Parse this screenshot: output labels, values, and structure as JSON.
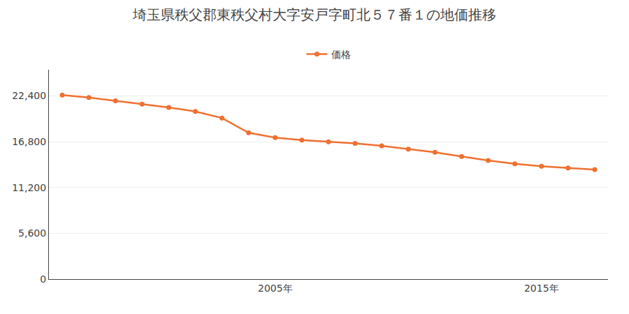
{
  "chart_data": {
    "type": "line",
    "title": "埼玉県秩父郡東秩父村大字安戸字町北５７番１の地価推移",
    "x": [
      1997,
      1998,
      1999,
      2000,
      2001,
      2002,
      2003,
      2004,
      2005,
      2006,
      2007,
      2008,
      2009,
      2010,
      2011,
      2012,
      2013,
      2014,
      2015,
      2016,
      2017
    ],
    "series": [
      {
        "name": "価格",
        "color": "#f07030",
        "values": [
          22500,
          22200,
          21800,
          21400,
          21000,
          20500,
          19700,
          17900,
          17300,
          17000,
          16800,
          16600,
          16300,
          15900,
          15500,
          15000,
          14500,
          14100,
          13800,
          13600,
          13400
        ]
      }
    ],
    "xlim": [
      1996.5,
      2017.5
    ],
    "xticks": [
      {
        "value": 2005,
        "label": "2005年"
      },
      {
        "value": 2015,
        "label": "2015年"
      }
    ],
    "ylim": [
      0,
      25600
    ],
    "yticks": [
      0,
      {
        "value": 5600,
        "label": "5,600"
      },
      {
        "value": 11200,
        "label": "11,200"
      },
      {
        "value": 16800,
        "label": "16,800"
      },
      {
        "value": 22400,
        "label": "22,400"
      }
    ],
    "grid": "y",
    "legend": "top",
    "marker": "circle"
  }
}
